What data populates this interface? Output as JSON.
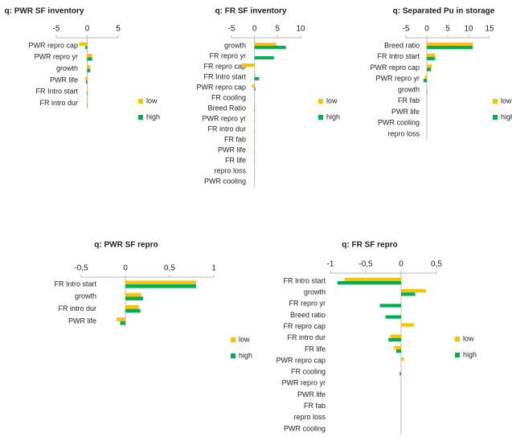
{
  "chart_data": [
    {
      "type": "bar",
      "orientation": "horizontal",
      "title": "q: PWR SF inventory",
      "categories": [
        "PWR repro cap",
        "PWR repro yr",
        "growth",
        "PWR life",
        "FR Intro start",
        "FR intro dur"
      ],
      "series": [
        {
          "name": "low",
          "color": "#FFC000",
          "values": [
            -1.3,
            0.8,
            0.5,
            -0.3,
            0.1,
            0.05
          ]
        },
        {
          "name": "high",
          "color": "#00B050",
          "values": [
            -0.3,
            0.8,
            0.5,
            -0.2,
            0.1,
            0.05
          ]
        }
      ],
      "xlim": [
        -5,
        5
      ],
      "xticks": [
        -5,
        0,
        5
      ],
      "legend": "right"
    },
    {
      "type": "bar",
      "orientation": "horizontal",
      "title": "q: FR SF inventory",
      "categories": [
        "growth",
        "FR repro yr",
        "FR repro cap",
        "FR Intro start",
        "PWR repro cap",
        "FR cooling",
        "Breed Ratio",
        "PWR repro yr",
        "FR intro dur",
        "FR fab",
        "PWR life",
        "FR life",
        "repro loss",
        "PWR cooling"
      ],
      "series": [
        {
          "name": "low",
          "color": "#FFC000",
          "values": [
            4.8,
            0,
            -2.8,
            0.2,
            -0.5,
            0.1,
            0.1,
            0.05,
            0.05,
            0.05,
            0.05,
            0.05,
            0,
            0
          ]
        },
        {
          "name": "high",
          "color": "#00B050",
          "values": [
            6.8,
            4.2,
            0,
            1.0,
            0.2,
            0,
            -0.1,
            0.05,
            0.05,
            0.05,
            0.05,
            0.05,
            0,
            0
          ]
        }
      ],
      "xlim": [
        -5,
        10
      ],
      "xticks": [
        -5,
        0,
        5,
        10
      ],
      "legend": "right"
    },
    {
      "type": "bar",
      "orientation": "horizontal",
      "title": "q: Separated Pu in storage",
      "categories": [
        "Breed ratio",
        "FR Intro start",
        "PWR repro cap",
        "PWR repro yr",
        "growth",
        "FR fab",
        "PWR life",
        "PWR cooling",
        "repro loss"
      ],
      "series": [
        {
          "name": "low",
          "color": "#FFC000",
          "values": [
            11,
            2,
            1.2,
            -0.5,
            0.1,
            0,
            0,
            0,
            0
          ]
        },
        {
          "name": "high",
          "color": "#00B050",
          "values": [
            11,
            2,
            1.0,
            -0.8,
            0.1,
            0,
            0,
            0,
            0
          ]
        }
      ],
      "xlim": [
        -5,
        15
      ],
      "xticks": [
        -5,
        0,
        5,
        10,
        15
      ],
      "legend": "right"
    },
    {
      "type": "bar",
      "orientation": "horizontal",
      "title": "q: PWR SF repro",
      "categories": [
        "FR Intro start",
        "growth",
        "FR intro dur",
        "PWR life"
      ],
      "series": [
        {
          "name": "low",
          "color": "#FFC000",
          "values": [
            0.8,
            0.18,
            0.15,
            -0.1
          ]
        },
        {
          "name": "high",
          "color": "#00B050",
          "values": [
            0.8,
            0.2,
            0.17,
            -0.06
          ]
        }
      ],
      "xlim": [
        -0.5,
        1
      ],
      "xticks": [
        {
          "value": -0.5,
          "label": "-0,5"
        },
        0,
        {
          "value": 0.5,
          "label": "0,5"
        },
        1
      ],
      "legend": "right"
    },
    {
      "type": "bar",
      "orientation": "horizontal",
      "title": "q: FR SF repro",
      "categories": [
        "FR Intro start",
        "growth",
        "FR repro yr",
        "Breed ratio",
        "FR repro cap",
        "FR intro dur",
        "FR life",
        "PWR repro cap",
        "FR cooling",
        "PWR repro yr",
        "PWR life",
        "FR fab",
        "repro loss",
        "PWR cooling"
      ],
      "series": [
        {
          "name": "low",
          "color": "#FFC000",
          "values": [
            -0.8,
            0.35,
            0,
            0,
            0.18,
            -0.15,
            -0.1,
            0.04,
            0,
            0,
            0,
            0,
            0,
            0
          ]
        },
        {
          "name": "high",
          "color": "#00B050",
          "values": [
            -0.9,
            0.2,
            -0.3,
            -0.22,
            0,
            -0.18,
            -0.07,
            0,
            -0.02,
            0,
            0,
            0,
            0,
            0
          ]
        }
      ],
      "xlim": [
        -1,
        0.5
      ],
      "xticks": [
        -1,
        {
          "value": -0.5,
          "label": "-0,5"
        },
        0,
        {
          "value": 0.5,
          "label": "0,5"
        }
      ],
      "legend": "right"
    }
  ]
}
